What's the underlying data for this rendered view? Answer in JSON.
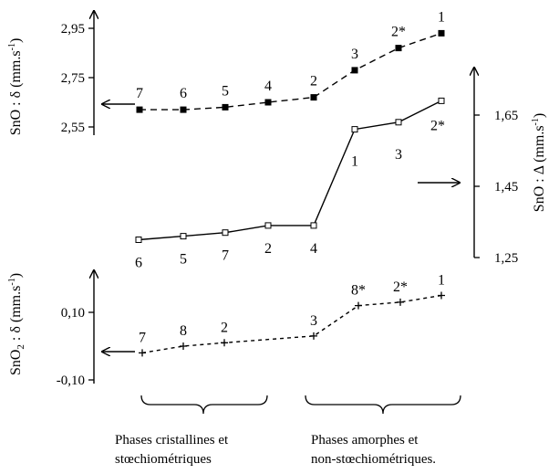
{
  "chart_data": [
    {
      "type": "line",
      "series": [
        {
          "name": "SnO : δ",
          "style": "dashed",
          "marker": "filled-square",
          "y_axis": "left",
          "points": [
            {
              "label": "7",
              "y": 2.62
            },
            {
              "label": "6",
              "y": 2.62
            },
            {
              "label": "5",
              "y": 2.63
            },
            {
              "label": "4",
              "y": 2.65
            },
            {
              "label": "2",
              "y": 2.67
            },
            {
              "label": "3",
              "y": 2.78
            },
            {
              "label": "2*",
              "y": 2.87
            },
            {
              "label": "1",
              "y": 2.93
            }
          ]
        },
        {
          "name": "SnO : Δ",
          "style": "solid",
          "marker": "open-square",
          "y_axis": "right",
          "points": [
            {
              "label": "6",
              "y": 1.3
            },
            {
              "label": "5",
              "y": 1.31
            },
            {
              "label": "7",
              "y": 1.32
            },
            {
              "label": "2",
              "y": 1.34
            },
            {
              "label": "4",
              "y": 1.34
            },
            {
              "label": "1",
              "y": 1.61
            },
            {
              "label": "3",
              "y": 1.63
            },
            {
              "label": "2*",
              "y": 1.69
            }
          ]
        }
      ],
      "y_left": {
        "label": "SnO : δ (mm.s",
        "sup": "-1",
        "close": ")",
        "ticks": [
          "2,95",
          "2,75",
          "2,55"
        ],
        "tick_values": [
          2.95,
          2.75,
          2.55
        ]
      },
      "y_right": {
        "label": "SnO : Δ (mm.s",
        "sup": "-1",
        "close": ")",
        "ticks": [
          "1,65",
          "1,45",
          "1,25"
        ],
        "tick_values": [
          1.65,
          1.45,
          1.25
        ]
      }
    },
    {
      "type": "line",
      "series": [
        {
          "name": "SnO2 : δ",
          "style": "dotted",
          "marker": "plus",
          "points": [
            {
              "label": "7",
              "y": -0.02
            },
            {
              "label": "8",
              "y": 0.0
            },
            {
              "label": "2",
              "y": 0.01
            },
            {
              "label": "3",
              "y": 0.03
            },
            {
              "label": "8*",
              "y": 0.12
            },
            {
              "label": "2*",
              "y": 0.13
            },
            {
              "label": "1",
              "y": 0.15
            }
          ]
        }
      ],
      "y_left": {
        "label_main": "SnO",
        "label_sub": "2",
        "label_rest": " : δ (mm.s",
        "sup": "-1",
        "close": ")",
        "ticks": [
          "0,10",
          "-0,10"
        ],
        "tick_values": [
          0.1,
          -0.1
        ]
      }
    }
  ],
  "captions": {
    "left": [
      "Phases cristallines et",
      "stœchiométriques"
    ],
    "right": [
      "Phases amorphes et",
      "non-stœchiométriques."
    ]
  }
}
